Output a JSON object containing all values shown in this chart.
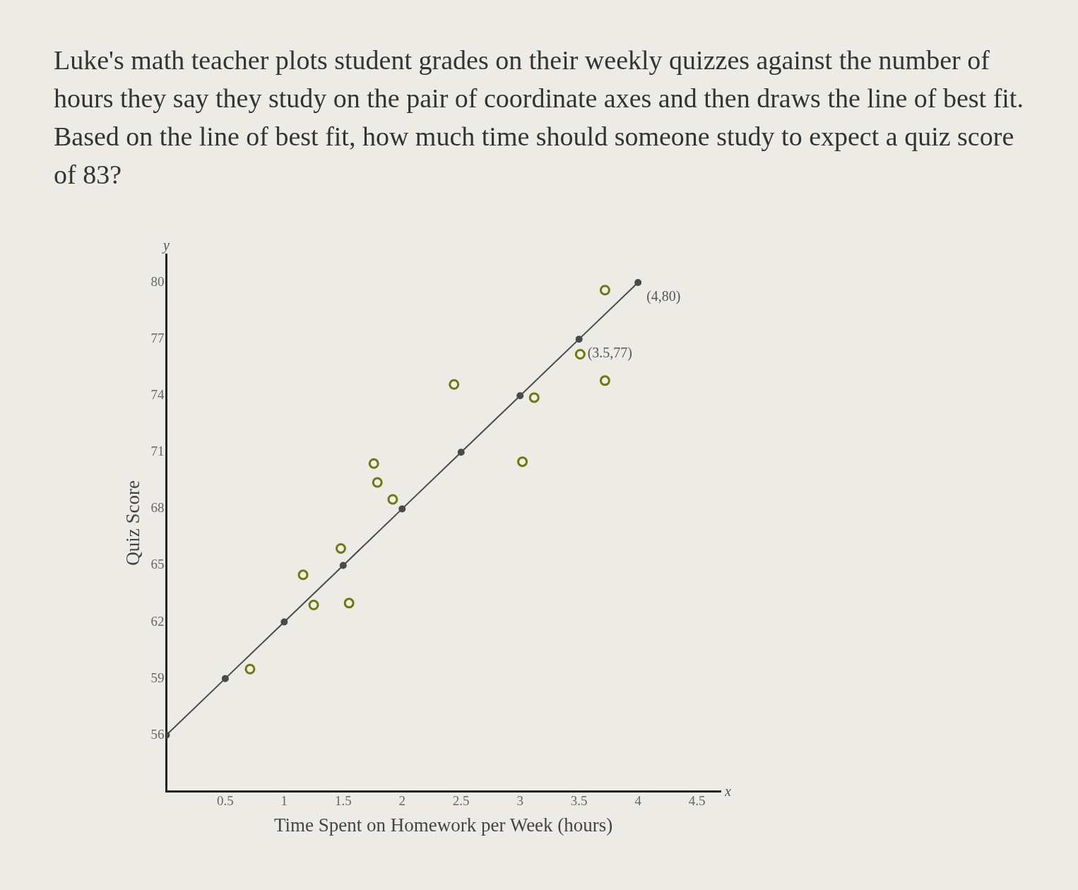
{
  "chart_data": {
    "type": "scatter",
    "title": "Luke's math teacher plots student grades on their weekly quizzes against the number of hours they say they study on the pair of coordinate axes and then draws the line of best fit. Based on the line of best fit, how much time should someone study to expect a quiz score of 83?",
    "xlabel": "Time Spent on Homework per Week (hours)",
    "ylabel": "Quiz Score",
    "series": [
      {
        "type": "scatter",
        "color": "#6b7a10",
        "x": [
          0.71,
          1.16,
          1.25,
          1.48,
          1.55,
          1.76,
          1.79,
          1.92,
          2.44,
          3.02,
          3.12,
          3.51,
          3.72,
          3.72
        ],
        "values": [
          59.5,
          64.5,
          62.9,
          65.9,
          63,
          70.4,
          69.4,
          68.5,
          74.6,
          70.5,
          73.9,
          76.2,
          74.8,
          79.6
        ]
      },
      {
        "type": "line",
        "color": "#4a4a4a",
        "x": [
          0,
          0.5,
          1,
          1.5,
          2,
          2.5,
          3,
          3.5,
          4
        ],
        "values": [
          56,
          59,
          62,
          65,
          68,
          71,
          74,
          77,
          80
        ]
      }
    ],
    "xlim": [
      0,
      4.7
    ],
    "xticks": [
      0.5,
      1,
      1.5,
      2,
      2.5,
      3,
      3.5,
      4,
      4.5
    ],
    "ylim": [
      53,
      81.5
    ],
    "yticks": [
      56,
      59,
      62,
      65,
      68,
      71,
      74,
      77,
      80
    ],
    "marker": "circle",
    "line_style": "solid",
    "grid": false,
    "legend": false,
    "annotations": [
      "y",
      "x",
      {
        "text": "(4,80)",
        "x": 4,
        "y": 80
      },
      {
        "text": "(3.5,77)",
        "x": 3.5,
        "y": 77
      }
    ]
  }
}
